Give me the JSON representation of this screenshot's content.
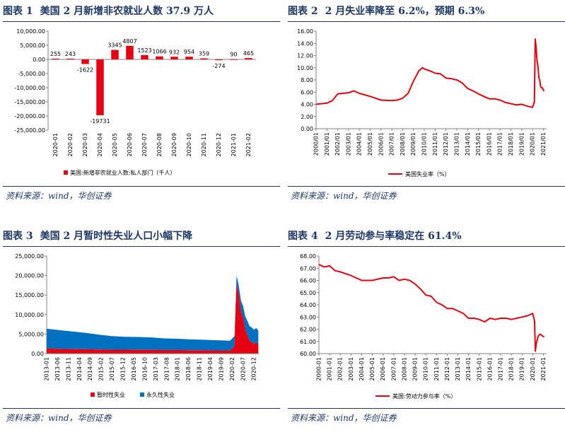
{
  "panels": [
    {
      "label": "图表 1",
      "title": "美国 2 月新增非农就业人数 37.9 万人",
      "source": "资料来源：wind，华创证券"
    },
    {
      "label": "图表 2",
      "title": "2 月失业率降至 6.2%，预期 6.3%",
      "source": "资料来源：wind，华创证券"
    },
    {
      "label": "图表 3",
      "title": "美国 2 月暂时性失业人口小幅下降",
      "source": "资料来源：wind，华创证券"
    },
    {
      "label": "图表 4",
      "title": "2 月劳动参与率稳定在 61.4%",
      "source": "资料来源：wind，华创证券"
    }
  ],
  "colors": {
    "red": "#e60012",
    "blue": "#0070c0",
    "navy": "#1f3864",
    "grid": "#d9d9d9"
  },
  "chart_data": [
    {
      "type": "bar",
      "title": "美国 2 月新增非农就业人数 37.9 万人",
      "categories": [
        "2020-01",
        "2020-02",
        "2020-03",
        "2020-04",
        "2020-05",
        "2020-06",
        "2020-07",
        "2020-08",
        "2020-09",
        "2020-10",
        "2020-11",
        "2020-12",
        "2021-01",
        "2021-02"
      ],
      "values": [
        255,
        243,
        -1622,
        -19731,
        3345,
        4807,
        1523,
        1066,
        932,
        954,
        359,
        -274,
        90,
        465
      ],
      "data_labels": [
        "255",
        "243",
        "-1622",
        "-19731",
        "3345",
        "4807",
        "1523",
        "1066",
        "932",
        "954",
        "359",
        "-274",
        "90",
        "465"
      ],
      "ylim": [
        -25000,
        10000
      ],
      "yticks": [
        10000,
        5000,
        0,
        -5000,
        -10000,
        -15000,
        -20000,
        -25000
      ],
      "ytick_labels": [
        "10,000.00",
        "5,000.00",
        "0.00",
        "-5,000.00",
        "-10,000.00",
        "-15,000.00",
        "-20,000.00",
        "-25,000.00"
      ],
      "legend": "美国:新增非农就业人数:私人部门（千人）",
      "legend_position": "bottom"
    },
    {
      "type": "line",
      "title": "2 月失业率降至 6.2%，预期 6.3%",
      "x": [
        2000.0,
        2001.0,
        2001.5,
        2002.0,
        2003.0,
        2003.5,
        2004.0,
        2005.0,
        2006.0,
        2007.0,
        2007.5,
        2008.0,
        2008.5,
        2009.0,
        2009.5,
        2009.83,
        2010.0,
        2010.5,
        2011.0,
        2011.5,
        2012.0,
        2012.5,
        2013.0,
        2013.5,
        2014.0,
        2014.5,
        2015.0,
        2015.5,
        2016.0,
        2016.5,
        2017.0,
        2017.5,
        2018.0,
        2018.5,
        2019.0,
        2019.5,
        2020.0,
        2020.17,
        2020.25,
        2020.33,
        2020.42,
        2020.5,
        2020.58,
        2020.67,
        2020.75,
        2020.83,
        2020.92,
        2021.0,
        2021.08
      ],
      "values": [
        4.0,
        4.2,
        4.6,
        5.7,
        5.9,
        6.2,
        5.8,
        5.3,
        4.7,
        4.6,
        4.7,
        5.0,
        5.8,
        7.8,
        9.5,
        10.0,
        9.8,
        9.5,
        9.1,
        9.0,
        8.3,
        8.2,
        8.0,
        7.5,
        6.6,
        6.2,
        5.7,
        5.3,
        4.9,
        4.9,
        4.7,
        4.3,
        4.1,
        3.9,
        4.0,
        3.7,
        3.5,
        4.4,
        14.7,
        13.3,
        11.1,
        10.2,
        8.4,
        7.9,
        6.9,
        6.7,
        6.7,
        6.3,
        6.2
      ],
      "ylim": [
        0,
        16
      ],
      "yticks": [
        0,
        2,
        4,
        6,
        8,
        10,
        12,
        14,
        16
      ],
      "ytick_labels": [
        "0.00",
        "2.00",
        "4.00",
        "6.00",
        "8.00",
        "10.00",
        "12.00",
        "14.00",
        "16.00"
      ],
      "xtick_labels": [
        "2000/01",
        "2001/01",
        "2002/01",
        "2003/01",
        "2004/01",
        "2005/01",
        "2006/01",
        "2007/01",
        "2008/01",
        "2009/01",
        "2010/01",
        "2011/01",
        "2012/01",
        "2013/01",
        "2014/01",
        "2015/01",
        "2016/01",
        "2017/01",
        "2018/01",
        "2019/01",
        "2020/01",
        "2021/01"
      ],
      "legend": "美国失业率（%）",
      "legend_position": "bottom"
    },
    {
      "type": "area",
      "title": "美国 2 月暂时性失业人口小幅下降",
      "x": [
        2013.0,
        2013.5,
        2014.0,
        2014.5,
        2015.0,
        2015.5,
        2016.0,
        2016.5,
        2017.0,
        2017.5,
        2018.0,
        2018.5,
        2019.0,
        2019.5,
        2020.0,
        2020.17,
        2020.25,
        2020.33,
        2020.42,
        2020.5,
        2020.58,
        2020.67,
        2020.75,
        2020.83,
        2020.92,
        2021.0,
        2021.08
      ],
      "series": [
        {
          "name": "暂时性失业",
          "values": [
            1300,
            1200,
            1150,
            1100,
            1050,
            1000,
            1000,
            950,
            950,
            900,
            900,
            850,
            850,
            820,
            800,
            1850,
            18000,
            15300,
            10600,
            9100,
            6200,
            4600,
            3200,
            3000,
            2500,
            2800,
            2400
          ]
        },
        {
          "name": "永久性失业",
          "values": [
            5100,
            4800,
            4500,
            4200,
            3800,
            3500,
            3300,
            3300,
            3200,
            3000,
            2900,
            2800,
            2700,
            2600,
            2500,
            2600,
            2000,
            2300,
            2900,
            3100,
            3400,
            3700,
            3800,
            3700,
            3600,
            3800,
            3500
          ]
        }
      ],
      "ylim": [
        0,
        25000
      ],
      "yticks": [
        0,
        5000,
        10000,
        15000,
        20000,
        25000
      ],
      "ytick_labels": [
        "0.00",
        "5,000.00",
        "10,000.00",
        "15,000.00",
        "20,000.00",
        "25,000.00"
      ],
      "xtick_labels": [
        "2013-01",
        "2013-06",
        "2013-11",
        "2014-04",
        "2014-09",
        "2015-02",
        "2015-07",
        "2015-12",
        "2016-05",
        "2016-10",
        "2017-03",
        "2017-08",
        "2018-01",
        "2018-06",
        "2018-11",
        "2019-04",
        "2019-09",
        "2020-02",
        "2020-07",
        "2020-12"
      ],
      "legend_position": "bottom"
    },
    {
      "type": "line",
      "title": "2 月劳动参与率稳定在 61.4%",
      "x": [
        2000.0,
        2000.5,
        2001.0,
        2001.5,
        2002.0,
        2003.0,
        2003.5,
        2004.0,
        2005.0,
        2006.0,
        2006.5,
        2007.0,
        2007.5,
        2008.0,
        2008.5,
        2009.0,
        2009.5,
        2010.0,
        2010.5,
        2011.0,
        2011.5,
        2012.0,
        2012.5,
        2013.0,
        2013.5,
        2014.0,
        2014.5,
        2015.0,
        2015.5,
        2016.0,
        2016.5,
        2017.0,
        2017.5,
        2018.0,
        2018.5,
        2019.0,
        2019.5,
        2020.0,
        2020.17,
        2020.25,
        2020.33,
        2020.5,
        2020.67,
        2020.83,
        2021.0,
        2021.08
      ],
      "values": [
        67.3,
        67.1,
        67.2,
        66.8,
        66.7,
        66.4,
        66.2,
        66.0,
        66.0,
        66.2,
        66.2,
        66.3,
        66.0,
        66.1,
        66.0,
        65.7,
        65.3,
        64.8,
        64.7,
        64.2,
        64.0,
        63.7,
        63.7,
        63.5,
        63.3,
        62.9,
        62.9,
        62.8,
        62.6,
        62.9,
        62.8,
        62.9,
        62.9,
        62.8,
        62.9,
        63.0,
        63.1,
        63.3,
        62.7,
        60.2,
        60.8,
        61.4,
        61.6,
        61.5,
        61.4,
        61.4
      ],
      "ylim": [
        60,
        68
      ],
      "yticks": [
        60,
        61,
        62,
        63,
        64,
        65,
        66,
        67,
        68
      ],
      "ytick_labels": [
        "60.00",
        "61.00",
        "62.00",
        "63.00",
        "64.00",
        "65.00",
        "66.00",
        "67.00",
        "68.00"
      ],
      "xtick_labels": [
        "2000-01",
        "2001-01",
        "2002-01",
        "2003-01",
        "2004-01",
        "2005-01",
        "2006-01",
        "2007-01",
        "2008-01",
        "2009-01",
        "2010-01",
        "2011-01",
        "2012-01",
        "2013-01",
        "2014-01",
        "2015-01",
        "2016-01",
        "2017-01",
        "2018-01",
        "2019-01",
        "2020-01",
        "2021-01"
      ],
      "legend": "美国:劳动力参与率（%）",
      "legend_position": "bottom"
    }
  ]
}
